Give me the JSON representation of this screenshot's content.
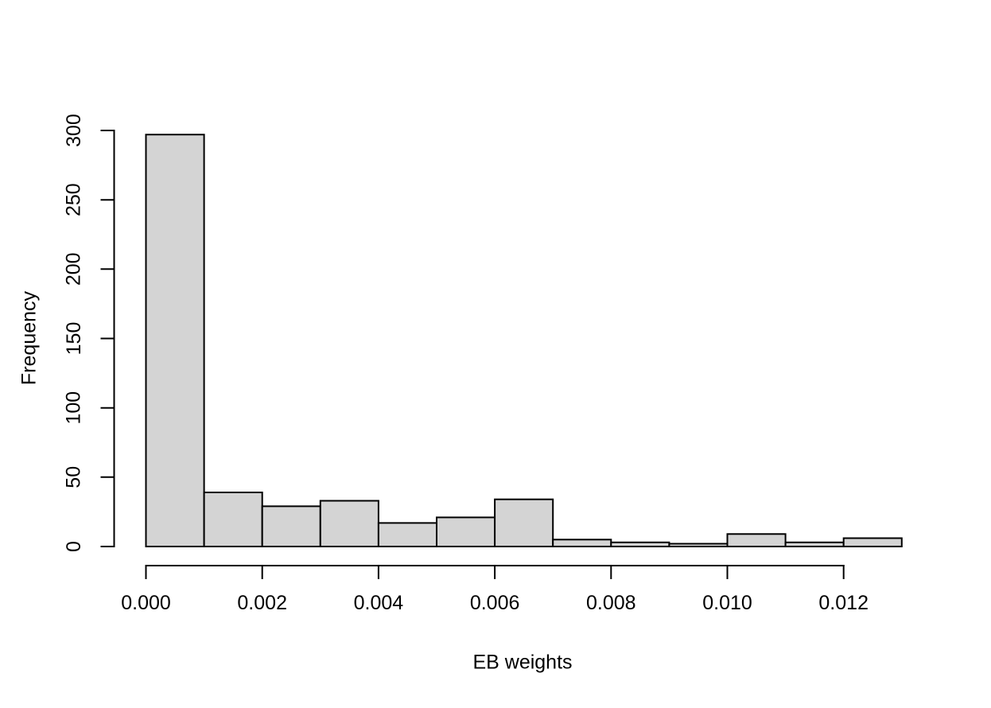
{
  "chart_data": {
    "type": "bar",
    "subtype": "histogram",
    "title": "",
    "xlabel": "EB weights",
    "ylabel": "Frequency",
    "bin_edges": [
      0.0,
      0.001,
      0.002,
      0.003,
      0.004,
      0.005,
      0.006,
      0.007,
      0.008,
      0.009,
      0.01,
      0.011,
      0.012,
      0.013
    ],
    "counts": [
      297,
      39,
      29,
      33,
      17,
      21,
      34,
      5,
      3,
      2,
      9,
      3,
      6
    ],
    "x_tick_values": [
      0.0,
      0.002,
      0.004,
      0.006,
      0.008,
      0.01,
      0.012
    ],
    "x_tick_labels": [
      "0.000",
      "0.002",
      "0.004",
      "0.006",
      "0.008",
      "0.010",
      "0.012"
    ],
    "y_tick_values": [
      0,
      50,
      100,
      150,
      200,
      250,
      300
    ],
    "y_tick_labels": [
      "0",
      "50",
      "100",
      "150",
      "200",
      "250",
      "300"
    ],
    "xlim": [
      0,
      0.013
    ],
    "ylim": [
      0,
      300
    ],
    "grid": false,
    "legend": "none",
    "colors": {
      "bar_fill": "#d4d4d4",
      "bar_stroke": "#000000",
      "axis": "#000000",
      "text": "#000000",
      "background": "#ffffff"
    }
  }
}
